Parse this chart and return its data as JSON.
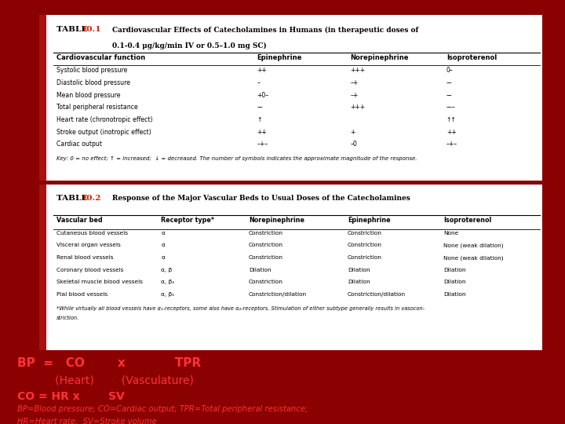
{
  "bg_color": "#8B0000",
  "title_red": "#CC2200",
  "table1_headers": [
    "Cardiovascular function",
    "Epinephrine",
    "Norepinephrine",
    "Isoproterenol"
  ],
  "table1_rows": [
    [
      "Systolic blood pressure",
      "++",
      "+++",
      "0–"
    ],
    [
      "Diastolic blood pressure",
      "–",
      "–+",
      "––"
    ],
    [
      "Mean blood pressure",
      "+0–",
      "–+",
      "––"
    ],
    [
      "Total peripheral resistance",
      "––",
      "+++",
      "–––"
    ],
    [
      "Heart rate (chronotropic effect)",
      "↑",
      "",
      "↑↑"
    ],
    [
      "Stroke output (inotropic effect)",
      "++",
      "+",
      "++"
    ],
    [
      "Cardiac output",
      "–+–",
      "–0",
      "–+–"
    ]
  ],
  "table1_key": "Key: 0 = no effect; ↑ = increased;  ↓ = decreased. The number of symbols indicates the approximate magnitude of the response.",
  "table2_title_text": "Response of the Major Vascular Beds to Usual Doses of the Catecholamines",
  "table2_headers": [
    "Vascular bed",
    "Receptor type*",
    "Norepinephrine",
    "Epinephrine",
    "Isoproterenol"
  ],
  "table2_rows": [
    [
      "Cutaneous blood vessels",
      "α",
      "Constriction",
      "Constriction",
      "None"
    ],
    [
      "Visceral organ vessels",
      "α",
      "Constriction",
      "Constriction",
      "None (weak dilation)"
    ],
    [
      "Renal blood vessels",
      "α",
      "Constriction",
      "Constriction",
      "None (weak dilation)"
    ],
    [
      "Coronary blood vessels",
      "α, β",
      "Dilation",
      "Dilation",
      "Dilation"
    ],
    [
      "Skeletal muscle blood vessels",
      "α, β₂",
      "Constriction",
      "Dilation",
      "Dilation"
    ],
    [
      "Pial blood vessels",
      "α, β₁",
      "Constriction/dilation",
      "Constriction/dilation",
      "Dilation"
    ]
  ],
  "table2_footnote": "*While virtually all blood vessels have α₁-receptors, some also have α₂-receptors. Stimulation of either subtype generally results in vasocon-\nstriction.",
  "bottom_line1a": "BP  =   CO        x            TPR",
  "bottom_line2": "           (Heart)        (Vasculature)",
  "bottom_line3a": "CO = HR x ",
  "bottom_line3b": "SV",
  "bottom_line4": "BP=Blood pressure; CO=Cardiac output; TPR=Total peripheral resistance;",
  "bottom_line5": "HR=Heart rate;  SV=Stroke volume",
  "bottom_text_color": "#FF3333",
  "left_bar_color": "#AA1111"
}
